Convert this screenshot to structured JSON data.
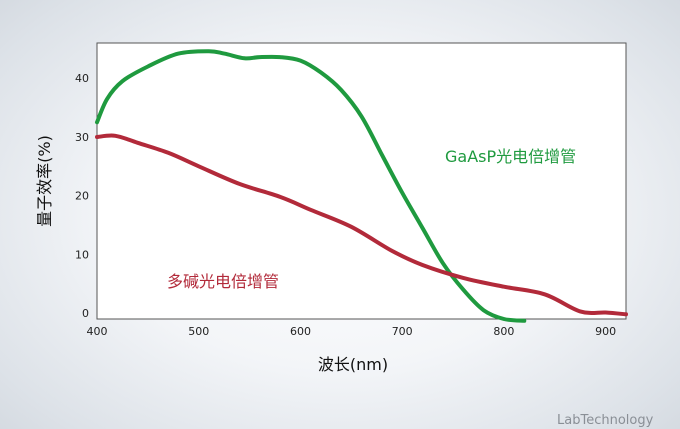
{
  "chart_data": {
    "type": "line",
    "title": "",
    "xlabel": "波长(nm)",
    "ylabel": "量子效率(%)",
    "xlim": [
      400,
      920
    ],
    "ylim": [
      -1,
      46
    ],
    "xticks": [
      400,
      500,
      600,
      700,
      800,
      900
    ],
    "yticks": [
      0,
      10,
      20,
      30,
      40
    ],
    "grid": false,
    "series": [
      {
        "name": "GaAsP光电倍增管",
        "color": "#1f9a3f",
        "x": [
          400,
          410,
          425,
          450,
          480,
          510,
          525,
          545,
          560,
          580,
          600,
          620,
          640,
          660,
          680,
          700,
          720,
          740,
          760,
          780,
          800,
          820
        ],
        "y": [
          32.5,
          36.5,
          39.5,
          42,
          44.2,
          44.6,
          44.2,
          43.4,
          43.6,
          43.6,
          43,
          41,
          38,
          33.5,
          27,
          20.5,
          14.5,
          8.5,
          4,
          0.5,
          -1,
          -1.3
        ]
      },
      {
        "name": "多碱光电倍增管",
        "color": "#b22a3a",
        "x": [
          400,
          418,
          440,
          470,
          500,
          540,
          580,
          610,
          650,
          690,
          720,
          760,
          800,
          840,
          875,
          900,
          920
        ],
        "y": [
          30,
          30.2,
          29,
          27.3,
          25,
          22,
          19.8,
          17.6,
          14.7,
          10.6,
          8.2,
          6,
          4.5,
          3.2,
          0.3,
          0.1,
          -0.2
        ]
      }
    ]
  },
  "credit": "LabTechnology"
}
